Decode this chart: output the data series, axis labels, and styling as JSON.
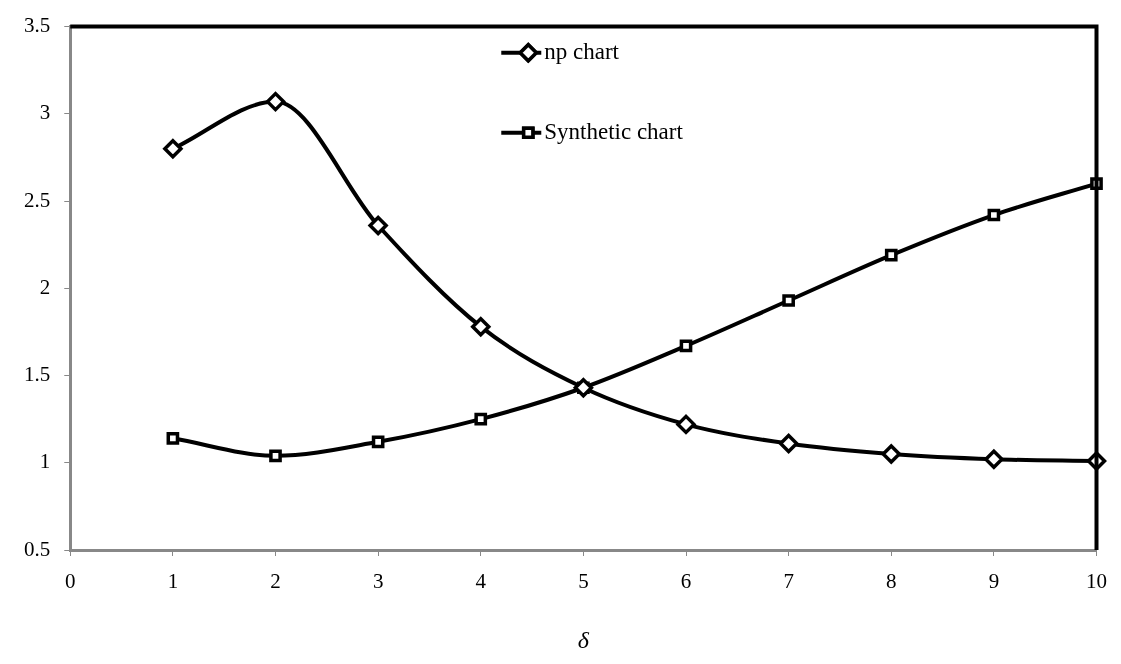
{
  "chart_data": {
    "type": "line",
    "xlabel": "δ",
    "x": [
      1,
      2,
      3,
      4,
      5,
      6,
      7,
      8,
      9,
      10
    ],
    "series": [
      {
        "name": "np chart",
        "color": "#000000",
        "marker": "diamond",
        "values": [
          2.8,
          3.07,
          2.36,
          1.78,
          1.43,
          1.22,
          1.11,
          1.05,
          1.02,
          1.01
        ]
      },
      {
        "name": "Synthetic chart",
        "color": "#000000",
        "marker": "square",
        "values": [
          1.14,
          1.04,
          1.12,
          1.25,
          1.43,
          1.67,
          1.93,
          2.19,
          2.42,
          2.6
        ]
      }
    ],
    "xlim": [
      0,
      10
    ],
    "xticks": [
      0,
      1,
      2,
      3,
      4,
      5,
      6,
      7,
      8,
      9,
      10
    ],
    "ylim": [
      0.5,
      3.5
    ],
    "yticks": [
      0.5,
      1,
      1.5,
      2,
      2.5,
      3,
      3.5
    ],
    "grid": false,
    "legend": "top",
    "line_style": "solid"
  }
}
